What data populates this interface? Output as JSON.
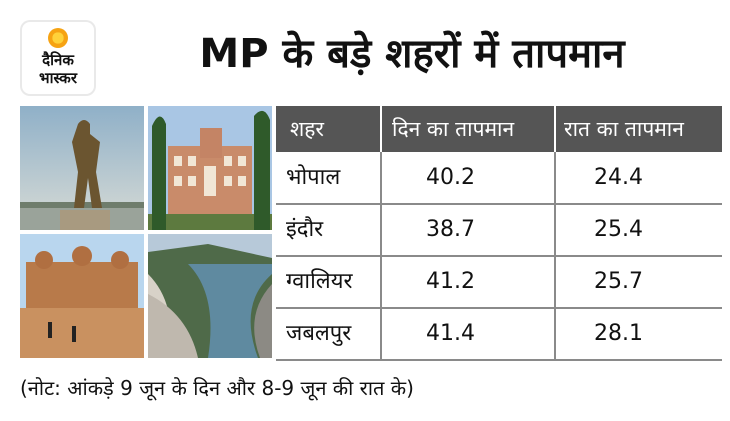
{
  "logo": {
    "line1": "दैनिक",
    "line2": "भास्कर"
  },
  "title": "MP के बड़े शहरों में तापमान",
  "table": {
    "headers": [
      "शहर",
      "दिन का तापमान",
      "रात का तापमान"
    ],
    "rows": [
      {
        "city": "भोपाल",
        "day": "40.2",
        "night": "24.4"
      },
      {
        "city": "इंदौर",
        "day": "38.7",
        "night": "25.4"
      },
      {
        "city": "ग्वालियर",
        "day": "41.2",
        "night": "25.7"
      },
      {
        "city": "जबलपुर",
        "day": "41.4",
        "night": "28.1"
      }
    ]
  },
  "note": "(नोट: आंकड़े 9 जून के दिन और 8-9 जून की रात के)",
  "colors": {
    "header_bg": "#555555",
    "logo_sun": "#f6a313",
    "grid": "#8a8a8a"
  }
}
